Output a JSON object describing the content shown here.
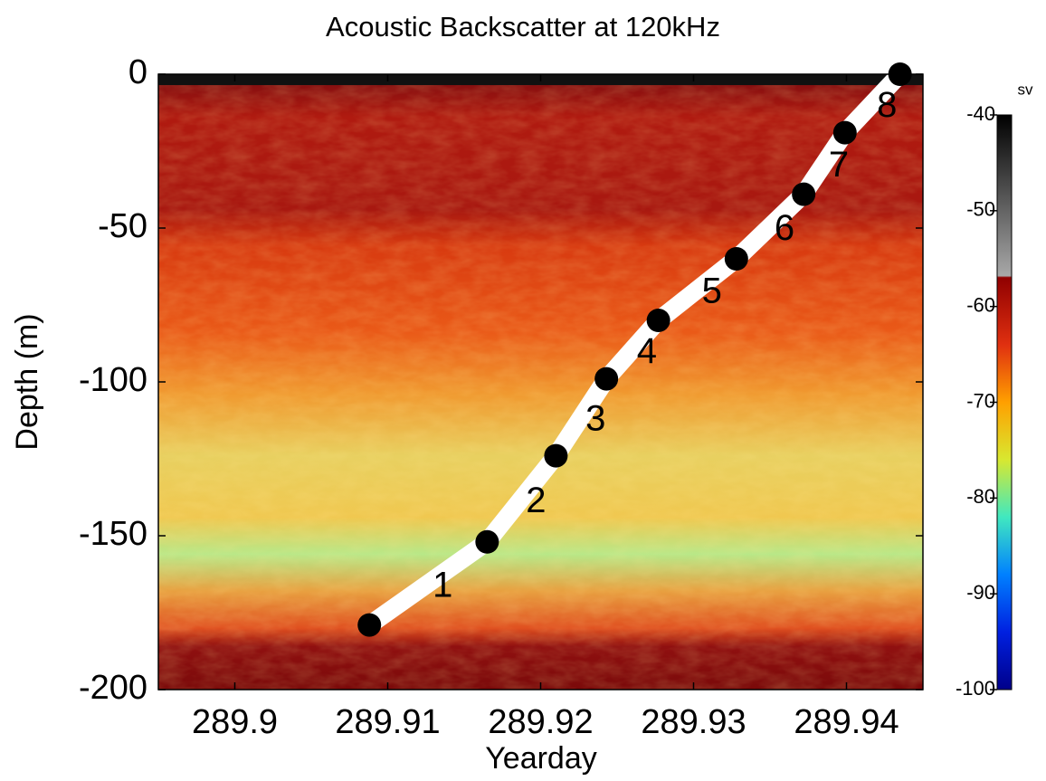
{
  "chart_data": {
    "type": "line",
    "title": "Acoustic Backscatter at 120kHz",
    "xlabel": "Yearday",
    "ylabel": "Depth (m)",
    "x": [
      289.9088,
      289.9165,
      289.921,
      289.9243,
      289.9277,
      289.9328,
      289.9372,
      289.9399,
      289.9435
    ],
    "series": [
      {
        "color": "#ffffff",
        "marker_color": "#000000",
        "values": [
          -179,
          -152,
          -124,
          -99,
          -80,
          -60,
          -39,
          -19,
          0
        ]
      }
    ],
    "segment_labels": [
      "1",
      "2",
      "3",
      "4",
      "5",
      "6",
      "7",
      "8"
    ],
    "xlim": [
      289.895,
      289.945
    ],
    "xticks": [
      289.9,
      289.91,
      289.92,
      289.93,
      289.94
    ],
    "ylim": [
      -200,
      0
    ],
    "yticks": [
      0,
      -50,
      -100,
      -150,
      -200
    ],
    "colorbar": {
      "label": "sv",
      "lim": [
        -100,
        -40
      ],
      "ticks": [
        -40,
        -50,
        -60,
        -70,
        -80,
        -90,
        -100
      ]
    }
  }
}
